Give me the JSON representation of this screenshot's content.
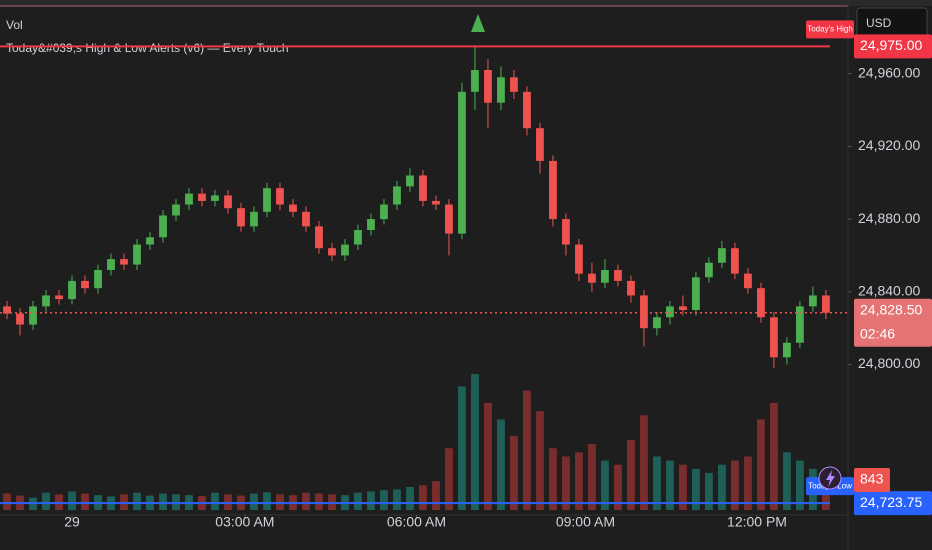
{
  "chart_data": {
    "type": "candlestick",
    "volume_title": "Vol",
    "indicator_title": "Today&#039;s High & Low Alerts (v6) — Every Touch",
    "currency": "USD",
    "open": [
      24832,
      24828,
      24822,
      24832,
      24838,
      24836,
      24846,
      24842,
      24852,
      24858,
      24855,
      24866,
      24870,
      24882,
      24888,
      24894,
      24890,
      24893,
      24886,
      24876,
      24884,
      24897,
      24888,
      24884,
      24876,
      24864,
      24860,
      24866,
      24874,
      24880,
      24888,
      24898,
      24904,
      24890,
      24888,
      24872,
      24950,
      24962,
      24944,
      24958,
      24950,
      24930,
      24912,
      24880,
      24866,
      24850,
      24845,
      24852,
      24846,
      24838,
      24820,
      24826,
      24832,
      24830,
      24848,
      24856,
      24864,
      24850,
      24842,
      24826,
      24804,
      24812,
      24832,
      24838
    ],
    "high": [
      24835,
      24831,
      24835,
      24841,
      24841,
      24849,
      24849,
      24855,
      24861,
      24861,
      24869,
      24873,
      24885,
      24891,
      24897,
      24897,
      24896,
      24896,
      24889,
      24887,
      24900,
      24900,
      24891,
      24887,
      24879,
      24867,
      24869,
      24877,
      24883,
      24891,
      24901,
      24908,
      24907,
      24893,
      24891,
      24955,
      24975,
      24968,
      24964,
      24962,
      24953,
      24933,
      24915,
      24883,
      24869,
      24856,
      24858,
      24855,
      24849,
      24841,
      24829,
      24835,
      24838,
      24851,
      24859,
      24868,
      24867,
      24853,
      24845,
      24829,
      24815,
      24835,
      24843,
      24841
    ],
    "low": [
      24825,
      24816,
      24819,
      24829,
      24833,
      24833,
      24839,
      24839,
      24849,
      24852,
      24852,
      24863,
      24867,
      24879,
      24885,
      24887,
      24887,
      24883,
      24873,
      24873,
      24881,
      24885,
      24881,
      24873,
      24861,
      24857,
      24857,
      24863,
      24871,
      24877,
      24885,
      24895,
      24887,
      24885,
      24860,
      24869,
      24940,
      24930,
      24940,
      24946,
      24926,
      24905,
      24876,
      24860,
      24846,
      24840,
      24842,
      24843,
      24834,
      24810,
      24816,
      24822,
      24827,
      24827,
      24845,
      24853,
      24847,
      24839,
      24823,
      24798,
      24800,
      24809,
      24829,
      24825
    ],
    "close": [
      24828,
      24822,
      24832,
      24838,
      24836,
      24846,
      24842,
      24852,
      24858,
      24855,
      24866,
      24870,
      24882,
      24888,
      24894,
      24890,
      24893,
      24886,
      24876,
      24884,
      24897,
      24888,
      24884,
      24876,
      24864,
      24860,
      24866,
      24874,
      24880,
      24888,
      24898,
      24904,
      24890,
      24888,
      24872,
      24950,
      24962,
      24944,
      24958,
      24950,
      24930,
      24912,
      24880,
      24866,
      24850,
      24845,
      24852,
      24846,
      24838,
      24820,
      24826,
      24832,
      24830,
      24848,
      24856,
      24864,
      24850,
      24842,
      24826,
      24804,
      24812,
      24832,
      24838,
      24828.5
    ],
    "volume": [
      400,
      350,
      300,
      420,
      380,
      450,
      400,
      360,
      330,
      380,
      420,
      350,
      400,
      380,
      360,
      340,
      420,
      380,
      350,
      400,
      430,
      380,
      360,
      420,
      400,
      380,
      360,
      420,
      450,
      480,
      500,
      560,
      600,
      700,
      1500,
      3000,
      3300,
      2600,
      2200,
      1800,
      2900,
      2400,
      1500,
      1300,
      1400,
      1600,
      1200,
      1100,
      1700,
      2300,
      1300,
      1200,
      1100,
      1000,
      900,
      1100,
      1200,
      1300,
      2200,
      2600,
      1400,
      1200,
      1000,
      843
    ],
    "xlim": [
      -0.54,
      64.7
    ],
    "xticks": [
      {
        "value": 5,
        "label": "29"
      },
      {
        "value": 18.3,
        "label": "03:00 AM"
      },
      {
        "value": 31.5,
        "label": "06:00 AM"
      },
      {
        "value": 44.5,
        "label": "09:00 AM"
      },
      {
        "value": 57.7,
        "label": "12:00 PM"
      }
    ],
    "ylim": [
      24720,
      24995
    ],
    "yticks": [
      {
        "value": 24800,
        "label": "24,800.00"
      },
      {
        "value": 24840,
        "label": "24,840.00"
      },
      {
        "value": 24880,
        "label": "24,880.00"
      },
      {
        "value": 24920,
        "label": "24,920.00"
      },
      {
        "value": 24960,
        "label": "24,960.00"
      }
    ],
    "vlim": [
      0,
      3400
    ],
    "high_line": {
      "value": 24975,
      "label": "24,975.00",
      "tag": "Today's High",
      "color": "#f23645"
    },
    "low_line": {
      "value": 24723.75,
      "label": "24,723.75",
      "tag": "Today's Low",
      "color": "#2962ff"
    },
    "last_price": {
      "value": 24828.5,
      "label": "24,828.50",
      "countdown": "02:46"
    },
    "up_color": "#4caf50",
    "down_color": "#ef5350",
    "vol_up_color": "#1e6b63",
    "vol_down_color": "#8a3030"
  }
}
